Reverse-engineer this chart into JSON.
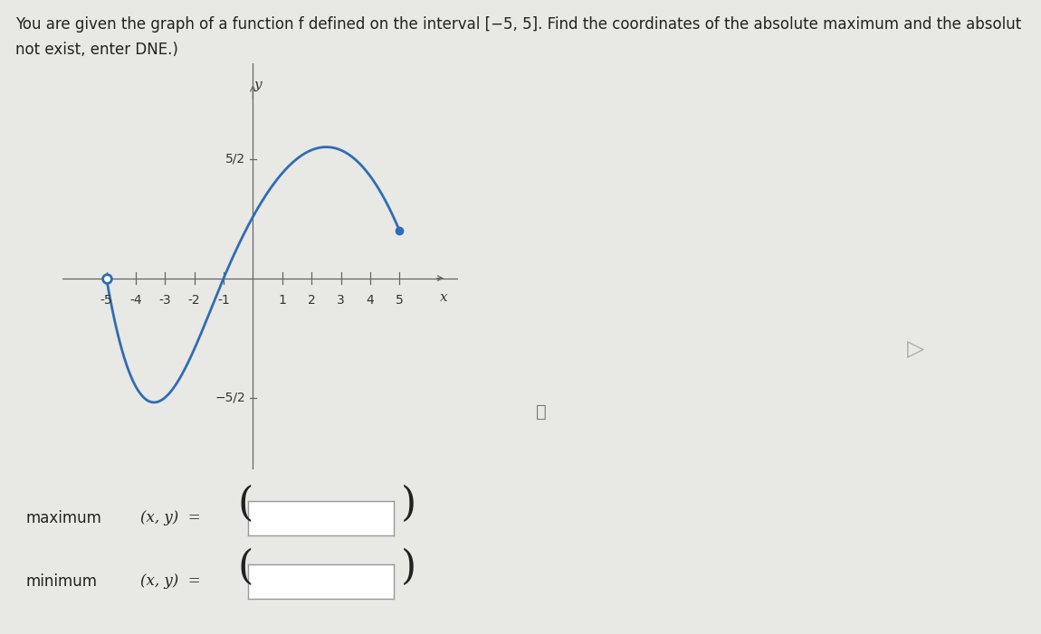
{
  "bg_color": "#f0f0f0",
  "plot_bg_color": "#dce8f2",
  "curve_color": "#2e6db4",
  "curve_linewidth": 2.0,
  "open_dot_x": -5,
  "open_dot_y": 0,
  "closed_dot_x": 5,
  "closed_dot_y": 1.0,
  "xlabel": "x",
  "ylabel": "y",
  "x_ticks": [
    -5,
    -4,
    -3,
    -2,
    -1,
    1,
    2,
    3,
    4,
    5
  ],
  "y_tick_pos": 2.5,
  "y_tick_neg": -2.5,
  "text_color": "#222222",
  "axis_color": "#666666",
  "font_size_title": 12,
  "font_size_labels": 11,
  "font_size_ticks": 10,
  "font_size_bottom": 12,
  "title_line1": "You are given the graph of a function f defined on the interval [−5, 5]. Find the coordinates of the absolute maximum and the absolut",
  "title_line2": "not exist, enter DNE.)",
  "max_label": "maximum",
  "min_label": "minimum",
  "xy_label": "(x, y)  =",
  "info_symbol": "ⓘ"
}
